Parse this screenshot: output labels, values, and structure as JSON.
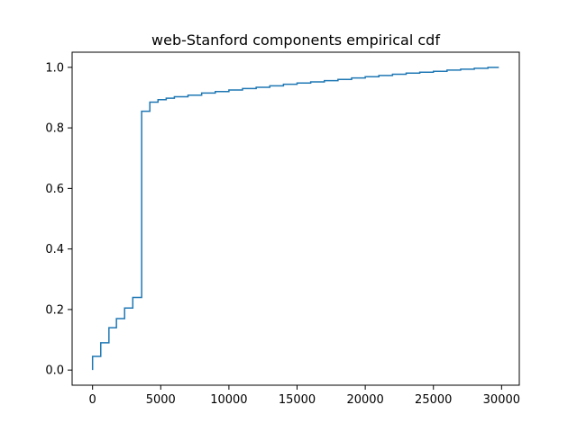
{
  "chart_data": {
    "type": "line",
    "drawstyle": "steps-post",
    "title": "web-Stanford components empirical cdf",
    "xlabel": "",
    "ylabel": "",
    "xlim": [
      -1500,
      31300
    ],
    "ylim": [
      -0.05,
      1.05
    ],
    "grid": false,
    "legend": "none",
    "x_ticks": [
      0,
      5000,
      10000,
      15000,
      20000,
      25000,
      30000
    ],
    "x_tick_labels": [
      "0",
      "5000",
      "10000",
      "15000",
      "20000",
      "25000",
      "30000"
    ],
    "y_ticks": [
      0.0,
      0.2,
      0.4,
      0.6,
      0.8,
      1.0
    ],
    "y_tick_labels": [
      "0.0",
      "0.2",
      "0.4",
      "0.6",
      "0.8",
      "1.0"
    ],
    "series": [
      {
        "color": "#1f77b4",
        "x": [
          0,
          0,
          600,
          600,
          1200,
          1200,
          1750,
          1750,
          2350,
          2350,
          2950,
          2950,
          3600,
          3600,
          4200,
          4200,
          4800,
          4800,
          5400,
          5400,
          6000,
          6000,
          7000,
          7000,
          8000,
          8000,
          9000,
          9000,
          10000,
          10000,
          11000,
          11000,
          12000,
          12000,
          13000,
          13000,
          14000,
          14000,
          15000,
          15000,
          16000,
          16000,
          17000,
          17000,
          18000,
          18000,
          19000,
          19000,
          20000,
          20000,
          21000,
          21000,
          22000,
          22000,
          23000,
          23000,
          24000,
          24000,
          25000,
          25000,
          26000,
          26000,
          27000,
          27000,
          28000,
          28000,
          29000,
          29000,
          29800
        ],
        "y": [
          0.0,
          0.045,
          0.045,
          0.09,
          0.09,
          0.14,
          0.14,
          0.17,
          0.17,
          0.205,
          0.205,
          0.24,
          0.24,
          0.855,
          0.855,
          0.885,
          0.885,
          0.893,
          0.893,
          0.898,
          0.898,
          0.903,
          0.903,
          0.908,
          0.908,
          0.915,
          0.915,
          0.92,
          0.92,
          0.925,
          0.925,
          0.93,
          0.93,
          0.934,
          0.934,
          0.939,
          0.939,
          0.944,
          0.944,
          0.948,
          0.948,
          0.952,
          0.952,
          0.956,
          0.956,
          0.96,
          0.96,
          0.965,
          0.965,
          0.969,
          0.969,
          0.973,
          0.973,
          0.977,
          0.977,
          0.981,
          0.981,
          0.984,
          0.984,
          0.987,
          0.987,
          0.991,
          0.991,
          0.994,
          0.994,
          0.997,
          0.997,
          1.0,
          1.0
        ]
      }
    ]
  }
}
